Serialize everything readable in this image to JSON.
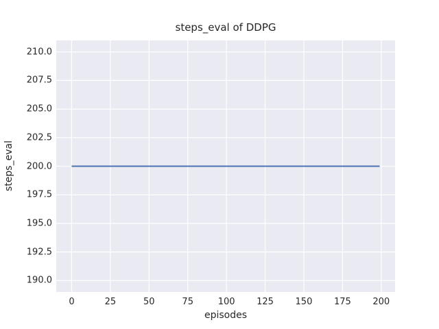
{
  "chart_data": {
    "type": "line",
    "title": "steps_eval of DDPG",
    "xlabel": "episodes",
    "ylabel": "steps_eval",
    "xlim": [
      -9.95,
      208.95
    ],
    "ylim": [
      189.0,
      211.0
    ],
    "xticks": [
      0,
      25,
      50,
      75,
      100,
      125,
      150,
      175,
      200
    ],
    "xtick_labels": [
      "0",
      "25",
      "50",
      "75",
      "100",
      "125",
      "150",
      "175",
      "200"
    ],
    "yticks": [
      190.0,
      192.5,
      195.0,
      197.5,
      200.0,
      202.5,
      205.0,
      207.5,
      210.0
    ],
    "ytick_labels": [
      "190.0",
      "192.5",
      "195.0",
      "197.5",
      "200.0",
      "202.5",
      "205.0",
      "207.5",
      "210.0"
    ],
    "grid": true,
    "legend_position": "none",
    "plot_bg_color": "#EAEAF2",
    "grid_color": "#FFFFFF",
    "text_color": "#262626",
    "series": [
      {
        "name": "DDPG steps_eval",
        "color": "#4C72B0",
        "line_width": 2,
        "x": [
          0,
          199
        ],
        "y": [
          200.0,
          200.0
        ],
        "note": "constant line at steps_eval = 200 across all 200 episodes"
      }
    ]
  }
}
